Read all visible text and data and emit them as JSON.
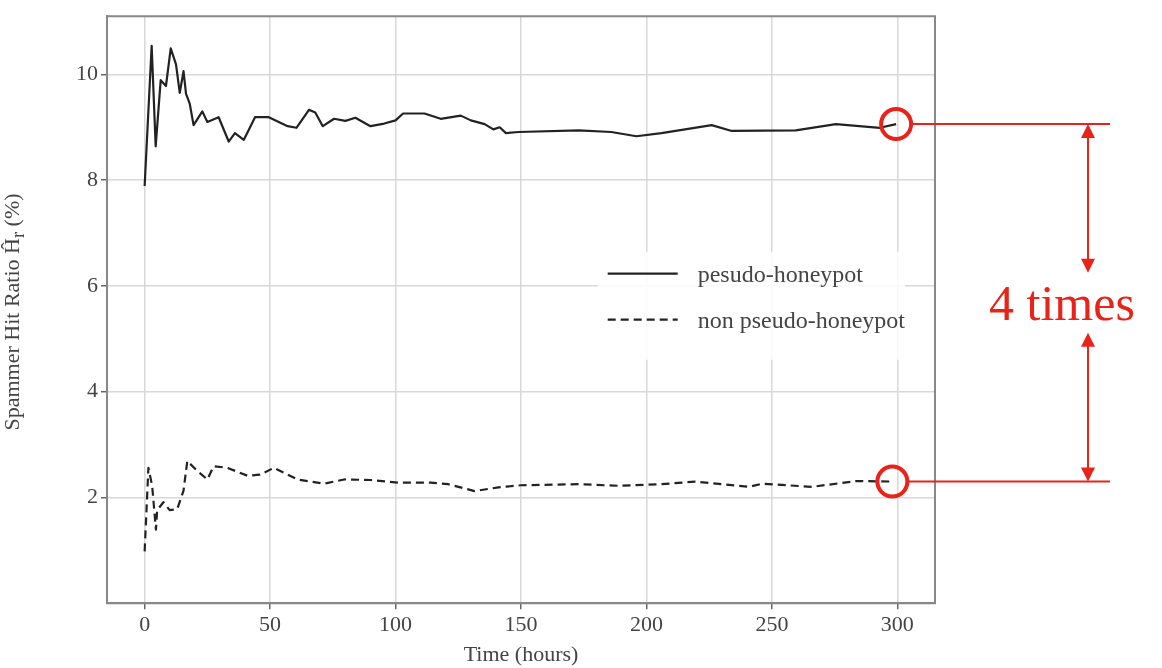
{
  "chart_data": {
    "type": "line",
    "xlabel": "Time (hours)",
    "ylabel": "Spammer Hit Ratio Ĥ$_{r}$ (%)",
    "xlim": [
      -15,
      315
    ],
    "xticks": [
      0,
      50,
      100,
      150,
      200,
      250,
      300
    ],
    "ylim": [
      0,
      11.1
    ],
    "yticks": [
      2,
      4,
      6,
      8,
      10
    ],
    "grid": true,
    "legend": "center right",
    "marker": "none",
    "annotations": [
      "4 times"
    ],
    "series": [
      {
        "name": "pesudo-honeypot",
        "color": "#222222",
        "line_style": "solid",
        "x": [
          0,
          2.8,
          4.4,
          6.4,
          8.5,
          10.4,
          12.5,
          14,
          15.5,
          16.5,
          18,
          19.5,
          23,
          25,
          29.5,
          33.5,
          36,
          39.5,
          44,
          49.5,
          57,
          60.5,
          65.5,
          68,
          71,
          75.5,
          80,
          84,
          90,
          95.5,
          100,
          103,
          111.5,
          118,
          126,
          130,
          135.5,
          139,
          141.5,
          144,
          149,
          173,
          186,
          196,
          206,
          226,
          234,
          259.5,
          275.5,
          293,
          299.5
        ],
        "values": [
          7.89,
          10.54,
          8.64,
          9.89,
          9.78,
          10.49,
          10.19,
          9.65,
          10.06,
          9.63,
          9.44,
          9.04,
          9.3,
          9.1,
          9.19,
          8.73,
          8.89,
          8.76,
          9.19,
          9.19,
          9.02,
          8.99,
          9.33,
          9.28,
          9.02,
          9.16,
          9.12,
          9.18,
          9.02,
          9.07,
          9.13,
          9.26,
          9.26,
          9.16,
          9.22,
          9.13,
          9.06,
          8.96,
          9.0,
          8.89,
          8.91,
          8.94,
          8.91,
          8.83,
          8.89,
          9.04,
          8.93,
          8.94,
          9.06,
          8.99,
          9.06
        ]
      },
      {
        "name": "non pseudo-honeypot",
        "color": "#222222",
        "line_style": "dashed",
        "x": [
          0,
          1.5,
          3,
          4.5,
          5,
          7.5,
          10,
          13,
          15.5,
          17,
          21,
          25,
          27.5,
          33,
          41,
          46,
          51.5,
          61,
          71.5,
          79.5,
          90,
          101,
          114,
          121,
          131.5,
          141,
          150,
          173,
          189,
          206,
          219.5,
          241,
          246,
          266,
          283.5,
          298
        ],
        "values": [
          0.98,
          2.56,
          2.22,
          1.39,
          1.76,
          1.91,
          1.76,
          1.78,
          2.13,
          2.69,
          2.5,
          2.34,
          2.59,
          2.56,
          2.41,
          2.43,
          2.56,
          2.34,
          2.26,
          2.34,
          2.33,
          2.28,
          2.28,
          2.25,
          2.12,
          2.19,
          2.23,
          2.25,
          2.22,
          2.25,
          2.3,
          2.2,
          2.26,
          2.2,
          2.31,
          2.3
        ]
      }
    ]
  }
}
